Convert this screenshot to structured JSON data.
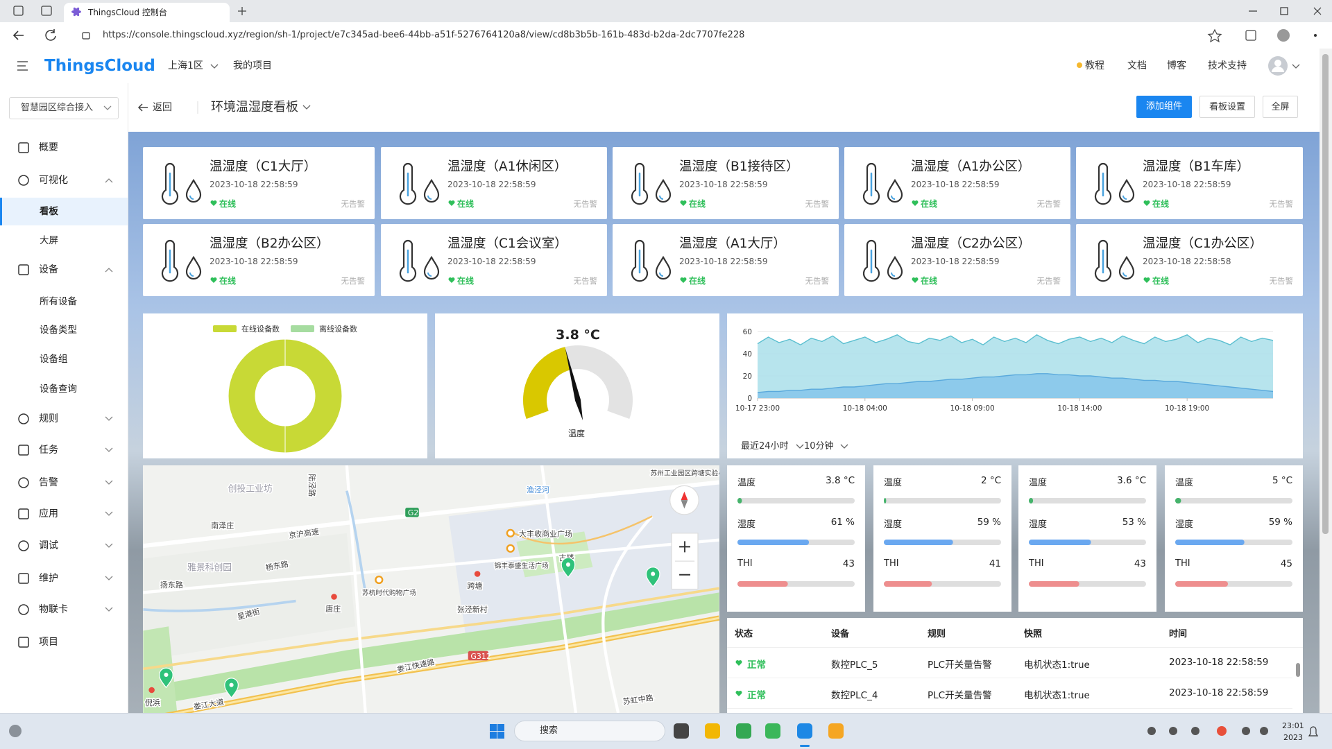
{
  "browser": {
    "tab_title": "ThingsCloud 控制台",
    "url": "https://console.thingscloud.xyz/region/sh-1/project/e7c345ad-bee6-44bb-a51f-5276764120a8/view/cd8b3b5b-161b-483d-b2da-2dc7707fe228"
  },
  "header": {
    "logo": "ThingsCloud",
    "region": "上海1区",
    "project": "我的项目",
    "links": [
      "教程",
      "文档",
      "博客",
      "技术支持"
    ]
  },
  "sidebar": {
    "project": "智慧园区综合接入",
    "items": [
      {
        "label": "概要"
      },
      {
        "label": "可视化",
        "children": [
          "看板",
          "大屏"
        ]
      },
      {
        "label": "设备",
        "children": [
          "所有设备",
          "设备类型",
          "设备组",
          "设备查询"
        ]
      },
      {
        "label": "规则"
      },
      {
        "label": "任务"
      },
      {
        "label": "告警"
      },
      {
        "label": "应用"
      },
      {
        "label": "调试"
      },
      {
        "label": "维护"
      },
      {
        "label": "物联卡"
      },
      {
        "label": "项目"
      }
    ]
  },
  "toolbar": {
    "back": "返回",
    "title": "环境温湿度看板",
    "buttons": [
      "添加组件",
      "看板设置",
      "全屏"
    ]
  },
  "cards": [
    {
      "name": "温湿度（C1大厅）",
      "time": "2023-10-18 22:58:59",
      "status": "在线",
      "alarm": "无告警"
    },
    {
      "name": "温湿度（A1休闲区）",
      "time": "2023-10-18 22:58:59",
      "status": "在线",
      "alarm": "无告警"
    },
    {
      "name": "温湿度（B1接待区）",
      "time": "2023-10-18 22:58:59",
      "status": "在线",
      "alarm": "无告警"
    },
    {
      "name": "温湿度（A1办公区）",
      "time": "2023-10-18 22:58:59",
      "status": "在线",
      "alarm": "无告警"
    },
    {
      "name": "温湿度（B1车库）",
      "time": "2023-10-18 22:58:59",
      "status": "在线",
      "alarm": "无告警"
    },
    {
      "name": "温湿度（B2办公区）",
      "time": "2023-10-18 22:58:59",
      "status": "在线",
      "alarm": "无告警"
    },
    {
      "name": "温湿度（C1会议室）",
      "time": "2023-10-18 22:58:59",
      "status": "在线",
      "alarm": "无告警"
    },
    {
      "name": "温湿度（A1大厅）",
      "time": "2023-10-18 22:58:59",
      "status": "在线",
      "alarm": "无告警"
    },
    {
      "name": "温湿度（C2办公区）",
      "time": "2023-10-18 22:58:59",
      "status": "在线",
      "alarm": "无告警"
    },
    {
      "name": "温湿度（C1办公区）",
      "time": "2023-10-18 22:58:58",
      "status": "在线",
      "alarm": "无告警"
    }
  ],
  "chart_data": [
    {
      "type": "pie",
      "series": [
        {
          "name": "在线设备数",
          "color": "#c8d936",
          "value": 10
        },
        {
          "name": "离线设备数",
          "color": "#a6dca0",
          "value": 0
        }
      ]
    },
    {
      "type": "gauge",
      "value": 3.8,
      "value_label": "3.8 °C",
      "label": "温度",
      "lim": [
        -40,
        60
      ],
      "color": "#d9c800",
      "track_color": "#e3e3e3"
    },
    {
      "type": "line",
      "x": [
        0,
        0.5,
        1,
        1.5,
        2,
        2.5,
        3,
        3.5,
        4,
        4.5,
        5,
        5.5,
        6,
        6.5,
        7,
        7.5,
        8,
        8.5,
        9,
        9.5,
        10,
        10.5,
        11,
        11.5,
        12,
        12.5,
        13,
        13.5,
        14,
        14.5,
        15,
        15.5,
        16,
        16.5,
        17,
        17.5,
        18,
        18.5,
        19,
        19.5,
        20,
        20.5,
        21,
        21.5,
        22,
        22.5,
        23,
        23.5,
        24
      ],
      "series": [
        {
          "color": "#5bbfd0",
          "fill": "#aadfea",
          "values": [
            49,
            55,
            50,
            53,
            48,
            54,
            51,
            56,
            49,
            52,
            55,
            50,
            53,
            57,
            51,
            49,
            54,
            52,
            56,
            50,
            53,
            48,
            55,
            51,
            54,
            50,
            57,
            52,
            49,
            53,
            55,
            51,
            54,
            50,
            56,
            52,
            49,
            55,
            51,
            53,
            57,
            50,
            54,
            52,
            48,
            55,
            51,
            54,
            52
          ]
        },
        {
          "color": "#5aa9dc",
          "fill": "#86c6ea",
          "values": [
            5,
            6,
            6,
            7,
            7,
            8,
            8,
            9,
            10,
            10,
            11,
            12,
            13,
            13,
            14,
            15,
            15,
            16,
            17,
            17,
            18,
            19,
            19,
            20,
            21,
            21,
            22,
            22,
            21,
            21,
            20,
            20,
            19,
            18,
            18,
            17,
            16,
            16,
            15,
            15,
            14,
            13,
            12,
            11,
            10,
            9,
            8,
            7,
            6
          ]
        }
      ],
      "xlim": [
        0,
        24
      ],
      "xticks": [
        {
          "value": 0,
          "label": "10-17 23:00"
        },
        {
          "value": 5,
          "label": "10-18 04:00"
        },
        {
          "value": 10,
          "label": "10-18 09:00"
        },
        {
          "value": 15,
          "label": "10-18 14:00"
        },
        {
          "value": 20,
          "label": "10-18 19:00"
        }
      ],
      "ylim": [
        0,
        60
      ],
      "yticks": [
        0,
        20,
        40,
        60
      ],
      "grid": true,
      "controls": [
        "最近24小时",
        "10分钟"
      ]
    }
  ],
  "map": {
    "labels": [
      "创投工业坊",
      "南泽庄",
      "京沪高速",
      "雅景科创园",
      "扬东路",
      "杨东路",
      "星港街",
      "唐庄",
      "苏杭时代购物广场",
      "大丰收商业广场",
      "锦丰泰盛生活广场",
      "古楼",
      "跨塘",
      "张泾新村",
      "娄江快速路",
      "渔泾河",
      "苏州工业园区跨塘实验小学",
      "苏虹中路",
      "倪浜",
      "娄江大道",
      "G2",
      "G312",
      "陆泾路"
    ]
  },
  "metrics": {
    "labels": [
      "温度",
      "湿度",
      "THI"
    ],
    "scale": [
      0,
      100
    ],
    "panels": [
      {
        "temperature": 3.8,
        "temperature_label": "3.8 °C",
        "humidity": 61,
        "humidity_label": "61 %",
        "thi": 43
      },
      {
        "temperature": 2,
        "temperature_label": "2 °C",
        "humidity": 59,
        "humidity_label": "59 %",
        "thi": 41
      },
      {
        "temperature": 3.6,
        "temperature_label": "3.6 °C",
        "humidity": 53,
        "humidity_label": "53 %",
        "thi": 43
      },
      {
        "temperature": 5,
        "temperature_label": "5 °C",
        "humidity": 59,
        "humidity_label": "59 %",
        "thi": 45
      }
    ]
  },
  "table": {
    "headers": [
      "状态",
      "设备",
      "规则",
      "快照",
      "时间"
    ],
    "rows": [
      [
        "正常",
        "数控PLC_5",
        "PLC开关量告警",
        "电机状态1:true",
        "2023-10-18 22:58:59"
      ],
      [
        "正常",
        "数控PLC_4",
        "PLC开关量告警",
        "电机状态1:true",
        "2023-10-18 22:58:59"
      ]
    ]
  },
  "taskbar": {
    "search": "搜索",
    "time": "23:01",
    "date": "2023"
  }
}
